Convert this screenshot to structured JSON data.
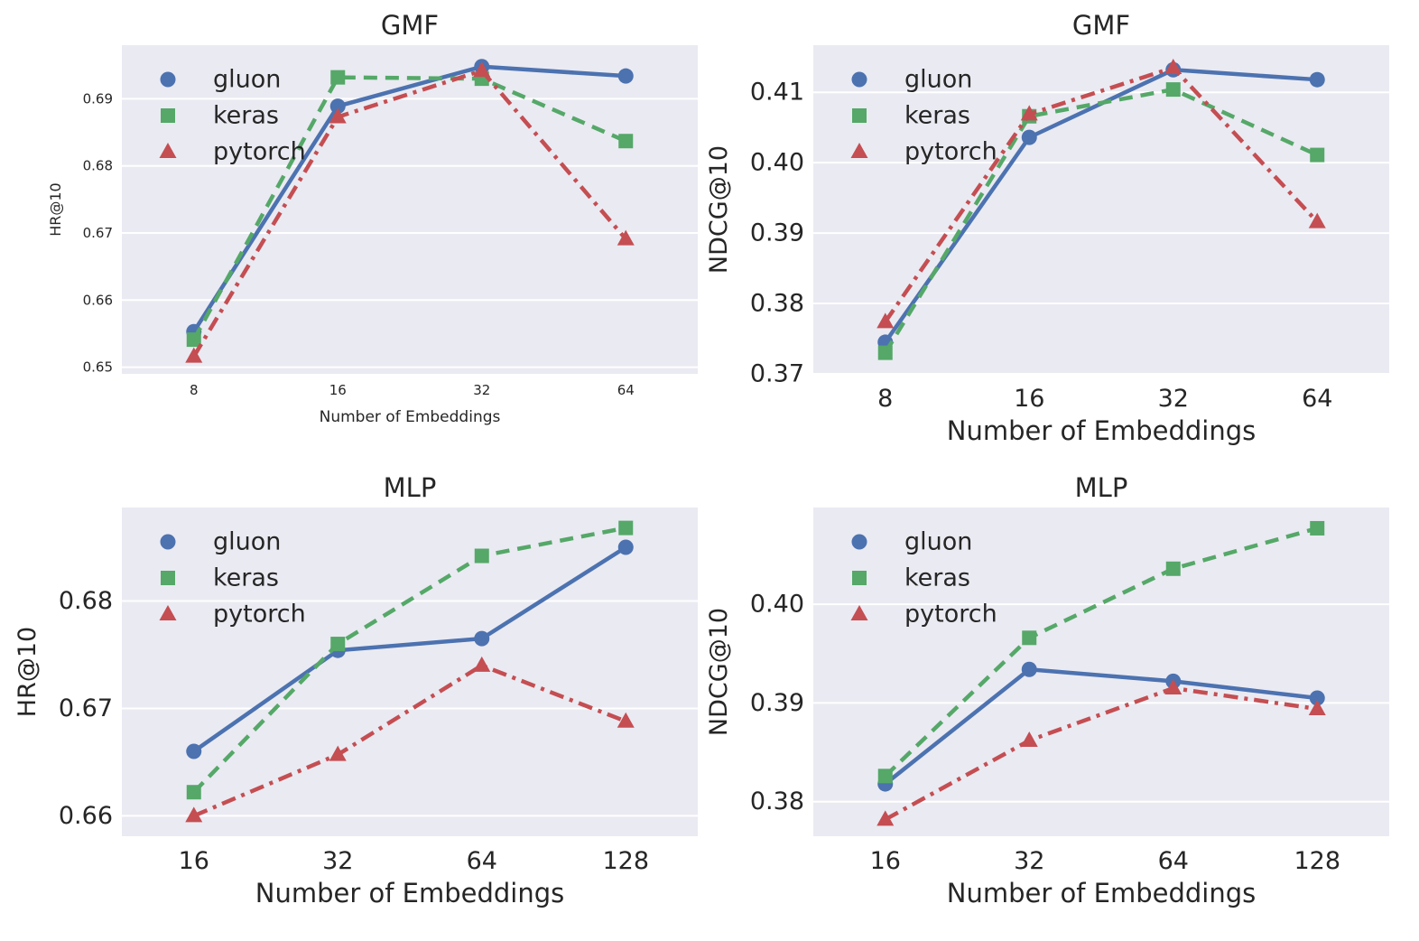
{
  "chart_data": [
    {
      "type": "line",
      "title": "GMF",
      "xlabel": "Number of Embeddings",
      "ylabel": "HR@10",
      "categories": [
        "8",
        "16",
        "32",
        "64"
      ],
      "ylim": [
        0.649,
        0.698
      ],
      "yticks": [
        "0.65",
        "0.66",
        "0.67",
        "0.68",
        "0.69"
      ],
      "ytick_values": [
        0.65,
        0.66,
        0.67,
        0.68,
        0.69
      ],
      "grid": true,
      "legend": "top-left",
      "series": [
        {
          "name": "gluon",
          "values": [
            0.6553,
            0.6889,
            0.6948,
            0.6934
          ],
          "color": "#4c72b0",
          "marker": "circle",
          "dash": "solid"
        },
        {
          "name": "keras",
          "values": [
            0.6541,
            0.6932,
            0.693,
            0.6837
          ],
          "color": "#55a868",
          "marker": "square",
          "dash": "dashed"
        },
        {
          "name": "pytorch",
          "values": [
            0.6516,
            0.6873,
            0.6942,
            0.6691
          ],
          "color": "#c44e52",
          "marker": "triangle",
          "dash": "dashdot"
        }
      ]
    },
    {
      "type": "line",
      "title": "GMF",
      "xlabel": "Number of Embeddings",
      "ylabel": "NDCG@10",
      "categories": [
        "8",
        "16",
        "32",
        "64"
      ],
      "ylim": [
        0.37,
        0.4167
      ],
      "yticks": [
        "0.37",
        "0.38",
        "0.39",
        "0.40",
        "0.41"
      ],
      "ytick_values": [
        0.37,
        0.38,
        0.39,
        0.4,
        0.41
      ],
      "grid": true,
      "legend": "top-left",
      "series": [
        {
          "name": "gluon",
          "values": [
            0.3745,
            0.4036,
            0.4132,
            0.4118
          ],
          "color": "#4c72b0",
          "marker": "circle",
          "dash": "solid"
        },
        {
          "name": "keras",
          "values": [
            0.373,
            0.4066,
            0.4104,
            0.4011
          ],
          "color": "#55a868",
          "marker": "square",
          "dash": "dashed"
        },
        {
          "name": "pytorch",
          "values": [
            0.3774,
            0.4069,
            0.4135,
            0.3916
          ],
          "color": "#c44e52",
          "marker": "triangle",
          "dash": "dashdot"
        }
      ]
    },
    {
      "type": "line",
      "title": "MLP",
      "xlabel": "Number of Embeddings",
      "ylabel": "HR@10",
      "categories": [
        "16",
        "32",
        "64",
        "128"
      ],
      "ylim": [
        0.6581,
        0.6887
      ],
      "yticks": [
        "0.66",
        "0.67",
        "0.68"
      ],
      "ytick_values": [
        0.66,
        0.67,
        0.68
      ],
      "grid": true,
      "legend": "top-left",
      "series": [
        {
          "name": "gluon",
          "values": [
            0.666,
            0.6754,
            0.6765,
            0.685
          ],
          "color": "#4c72b0",
          "marker": "circle",
          "dash": "solid"
        },
        {
          "name": "keras",
          "values": [
            0.6622,
            0.676,
            0.6842,
            0.6868
          ],
          "color": "#55a868",
          "marker": "square",
          "dash": "dashed"
        },
        {
          "name": "pytorch",
          "values": [
            0.66,
            0.6657,
            0.674,
            0.6688
          ],
          "color": "#c44e52",
          "marker": "triangle",
          "dash": "dashdot"
        }
      ]
    },
    {
      "type": "line",
      "title": "MLP",
      "xlabel": "Number of Embeddings",
      "ylabel": "NDCG@10",
      "categories": [
        "16",
        "32",
        "64",
        "128"
      ],
      "ylim": [
        0.3765,
        0.4098
      ],
      "yticks": [
        "0.38",
        "0.39",
        "0.40"
      ],
      "ytick_values": [
        0.38,
        0.39,
        0.4
      ],
      "grid": true,
      "legend": "top-left",
      "series": [
        {
          "name": "gluon",
          "values": [
            0.3818,
            0.3934,
            0.3922,
            0.3905
          ],
          "color": "#4c72b0",
          "marker": "circle",
          "dash": "solid"
        },
        {
          "name": "keras",
          "values": [
            0.3826,
            0.3966,
            0.4036,
            0.4077
          ],
          "color": "#55a868",
          "marker": "square",
          "dash": "dashed"
        },
        {
          "name": "pytorch",
          "values": [
            0.3782,
            0.3862,
            0.3915,
            0.3894
          ],
          "color": "#c44e52",
          "marker": "triangle",
          "dash": "dashdot"
        }
      ]
    }
  ]
}
